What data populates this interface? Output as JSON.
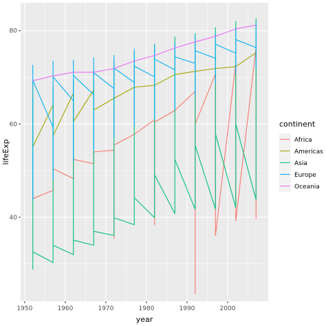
{
  "chart_data": {
    "type": "line",
    "xlabel": "year",
    "ylabel": "lifeExp",
    "xlim": [
      1949,
      2010
    ],
    "ylim": [
      22,
      86
    ],
    "x_ticks": [
      1950,
      1960,
      1970,
      1980,
      1990,
      2000
    ],
    "y_ticks": [
      40,
      60,
      80
    ],
    "grid": true,
    "legend": {
      "title": "continent",
      "position": "right",
      "entries": [
        {
          "name": "Africa",
          "color": "#F8766D"
        },
        {
          "name": "Americas",
          "color": "#A3A500"
        },
        {
          "name": "Asia",
          "color": "#00BF7D"
        },
        {
          "name": "Europe",
          "color": "#00B0F6"
        },
        {
          "name": "Oceania",
          "color": "#E76BF3"
        }
      ]
    },
    "series": [
      {
        "name": "Africa",
        "color": "#F8766D",
        "points": [
          [
            1952,
            48.5
          ],
          [
            1952,
            44.0
          ],
          [
            1957,
            45.8
          ],
          [
            1957,
            50.4
          ],
          [
            1962,
            48.3
          ],
          [
            1962,
            52.4
          ],
          [
            1967,
            51.5
          ],
          [
            1967,
            54.0
          ],
          [
            1972,
            54.4
          ],
          [
            1972,
            35.5
          ],
          [
            1972,
            55.5
          ],
          [
            1977,
            57.8
          ],
          [
            1982,
            60.9
          ],
          [
            1982,
            38.4
          ],
          [
            1982,
            60.4
          ],
          [
            1987,
            62.9
          ],
          [
            1992,
            67.0
          ],
          [
            1992,
            23.6
          ],
          [
            1992,
            60.0
          ],
          [
            1997,
            70.7
          ],
          [
            1997,
            47.5
          ],
          [
            1997,
            36.1
          ],
          [
            2002,
            73.0
          ],
          [
            2002,
            39.2
          ],
          [
            2007,
            76.4
          ],
          [
            2007,
            39.6
          ]
        ]
      },
      {
        "name": "Americas",
        "color": "#A3A500",
        "points": [
          [
            1952,
            68.8
          ],
          [
            1952,
            55.1
          ],
          [
            1957,
            64.1
          ],
          [
            1957,
            57.5
          ],
          [
            1962,
            66.6
          ],
          [
            1962,
            60.5
          ],
          [
            1967,
            67.3
          ],
          [
            1967,
            63.0
          ],
          [
            1972,
            65.5
          ],
          [
            1977,
            67.9
          ],
          [
            1982,
            68.3
          ],
          [
            1987,
            70.6
          ],
          [
            1992,
            71.3
          ],
          [
            1997,
            71.9
          ],
          [
            2002,
            72.3
          ],
          [
            2007,
            75.3
          ]
        ]
      },
      {
        "name": "Asia",
        "color": "#00BF7D",
        "points": [
          [
            1952,
            28.8
          ],
          [
            1952,
            65.4
          ],
          [
            1952,
            32.6
          ],
          [
            1957,
            30.3
          ],
          [
            1957,
            67.8
          ],
          [
            1957,
            34.0
          ],
          [
            1962,
            32.0
          ],
          [
            1962,
            69.4
          ],
          [
            1962,
            35.1
          ],
          [
            1967,
            34.0
          ],
          [
            1967,
            71.4
          ],
          [
            1967,
            37.0
          ],
          [
            1972,
            36.1
          ],
          [
            1972,
            73.4
          ],
          [
            1972,
            39.9
          ],
          [
            1977,
            38.4
          ],
          [
            1977,
            75.4
          ],
          [
            1977,
            44.2
          ],
          [
            1982,
            39.9
          ],
          [
            1982,
            77.1
          ],
          [
            1982,
            49.1
          ],
          [
            1987,
            40.8
          ],
          [
            1987,
            78.7
          ],
          [
            1987,
            52.4
          ],
          [
            1992,
            41.7
          ],
          [
            1992,
            79.4
          ],
          [
            1992,
            55.4
          ],
          [
            1997,
            41.8
          ],
          [
            1997,
            80.7
          ],
          [
            1997,
            57.9
          ],
          [
            2002,
            42.1
          ],
          [
            2002,
            82.0
          ],
          [
            2002,
            60.0
          ],
          [
            2007,
            43.8
          ],
          [
            2007,
            82.6
          ],
          [
            2007,
            59.5
          ]
        ]
      },
      {
        "name": "Europe",
        "color": "#00B0F6",
        "points": [
          [
            1952,
            72.7
          ],
          [
            1952,
            43.6
          ],
          [
            1952,
            69.4
          ],
          [
            1957,
            59.3
          ],
          [
            1957,
            73.5
          ],
          [
            1957,
            48.1
          ],
          [
            1957,
            70.1
          ],
          [
            1962,
            65.0
          ],
          [
            1962,
            73.7
          ],
          [
            1962,
            52.1
          ],
          [
            1962,
            70.4
          ],
          [
            1967,
            66.3
          ],
          [
            1967,
            74.2
          ],
          [
            1967,
            54.3
          ],
          [
            1967,
            71.0
          ],
          [
            1972,
            67.6
          ],
          [
            1972,
            74.7
          ],
          [
            1972,
            57.0
          ],
          [
            1972,
            72.0
          ],
          [
            1977,
            68.9
          ],
          [
            1977,
            76.1
          ],
          [
            1977,
            59.5
          ],
          [
            1977,
            72.4
          ],
          [
            1982,
            70.1
          ],
          [
            1982,
            76.9
          ],
          [
            1982,
            61.0
          ],
          [
            1982,
            73.9
          ],
          [
            1987,
            71.6
          ],
          [
            1987,
            77.4
          ],
          [
            1987,
            63.1
          ],
          [
            1987,
            74.4
          ],
          [
            1992,
            73.0
          ],
          [
            1992,
            78.8
          ],
          [
            1992,
            66.1
          ],
          [
            1992,
            75.7
          ],
          [
            1997,
            74.1
          ],
          [
            1997,
            79.4
          ],
          [
            1997,
            68.8
          ],
          [
            1997,
            77.1
          ],
          [
            2002,
            75.2
          ],
          [
            2002,
            80.6
          ],
          [
            2002,
            70.8
          ],
          [
            2002,
            78.1
          ],
          [
            2007,
            76.4
          ],
          [
            2007,
            81.8
          ],
          [
            2007,
            71.8
          ],
          [
            2007,
            76.4
          ]
        ]
      },
      {
        "name": "Oceania",
        "color": "#E76BF3",
        "points": [
          [
            1952,
            69.3
          ],
          [
            1957,
            70.3
          ],
          [
            1962,
            71.1
          ],
          [
            1967,
            71.1
          ],
          [
            1972,
            71.9
          ],
          [
            1977,
            73.5
          ],
          [
            1982,
            74.7
          ],
          [
            1987,
            76.3
          ],
          [
            1992,
            77.6
          ],
          [
            1997,
            78.8
          ],
          [
            2002,
            80.4
          ],
          [
            2007,
            81.2
          ]
        ]
      }
    ]
  }
}
